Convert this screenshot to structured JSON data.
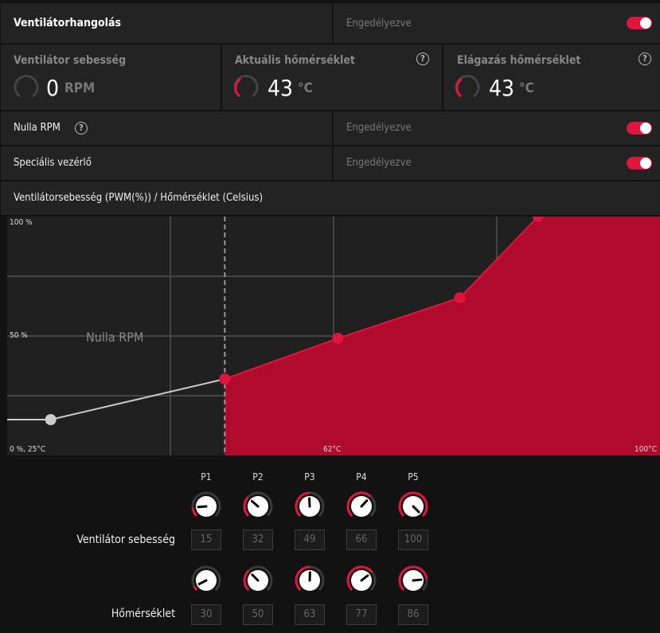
{
  "header": {
    "title": "Ventilátorhangolás",
    "status": "Engedélyezve",
    "enabled": true
  },
  "stats": [
    {
      "label": "Ventilátor sebesség",
      "value": "0",
      "unit": "RPM",
      "help": false,
      "gauge_fraction": 0
    },
    {
      "label": "Aktuális hőmérséklet",
      "value": "43",
      "unit": "°C",
      "help": true,
      "gauge_fraction": 0.3
    },
    {
      "label": "Elágazás hőmérséklet",
      "value": "43",
      "unit": "°C",
      "help": true,
      "gauge_fraction": 0.3
    }
  ],
  "zero_rpm": {
    "label": "Nulla RPM",
    "status": "Engedélyezve",
    "enabled": true,
    "help_icon": "question-circle-icon"
  },
  "custom": {
    "label": "Speciális vezérlő",
    "status": "Engedélyezve",
    "enabled": true
  },
  "chart_title": "Ventilátorsebesség (PWM(%)) / Hőmérséklet (Celsius)",
  "chart_data": {
    "type": "area",
    "xlabel": "",
    "ylabel": "",
    "xlim": [
      25,
      100
    ],
    "ylim": [
      0,
      100
    ],
    "tick_labels": {
      "y_top": "100 %",
      "y_mid": "50 %",
      "origin": "0 %, 25°C",
      "x_mid": "62°C",
      "x_right": "100°C"
    },
    "zone_label": "Nulla RPM",
    "zero_rpm_threshold": 50,
    "points": [
      {
        "name": "P1",
        "x": 30,
        "y": 15
      },
      {
        "name": "P2",
        "x": 50,
        "y": 32
      },
      {
        "name": "P3",
        "x": 63,
        "y": 49
      },
      {
        "name": "P4",
        "x": 77,
        "y": 66
      },
      {
        "name": "P5",
        "x": 86,
        "y": 100
      }
    ],
    "grid": true,
    "colors": {
      "fill": "#b00a2d",
      "point": "#e0143c",
      "inactive": "#cccccc"
    }
  },
  "controls": {
    "points": [
      "P1",
      "P2",
      "P3",
      "P4",
      "P5"
    ],
    "fan_label": "Ventilátor sebesség",
    "fan_values": [
      "15",
      "32",
      "49",
      "66",
      "100"
    ],
    "temp_label": "Hőmérséklet",
    "temp_values": [
      "30",
      "50",
      "63",
      "77",
      "86"
    ]
  }
}
